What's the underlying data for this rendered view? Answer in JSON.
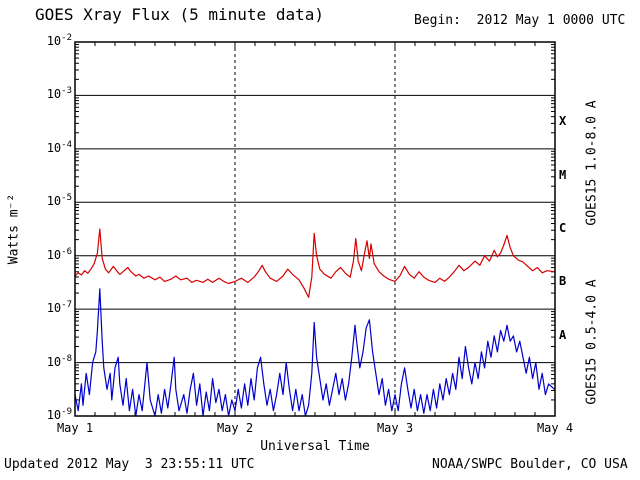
{
  "header": {
    "title": "GOES Xray Flux (5 minute data)",
    "begin_label": "Begin:  2012 May 1 0000 UTC"
  },
  "footer": {
    "updated": "Updated 2012 May  3 23:55:11 UTC",
    "credit": "NOAA/SWPC Boulder, CO USA"
  },
  "chart_data": {
    "type": "line",
    "title": "GOES Xray Flux (5 minute data)",
    "xlabel": "Universal Time",
    "ylabel": "Watts m⁻²",
    "x_range_days": [
      1,
      4
    ],
    "y_log_range": [
      -9,
      -2
    ],
    "x_ticks": [
      {
        "label": "May 1",
        "day": 1
      },
      {
        "label": "May 2",
        "day": 2
      },
      {
        "label": "May 3",
        "day": 3
      },
      {
        "label": "May 4",
        "day": 4
      }
    ],
    "y_tick_exponents": [
      -2,
      -3,
      -4,
      -5,
      -6,
      -7,
      -8,
      -9
    ],
    "flux_classes": [
      {
        "label": "X",
        "log_center": -3.5
      },
      {
        "label": "M",
        "log_center": -4.5
      },
      {
        "label": "C",
        "log_center": -5.5
      },
      {
        "label": "B",
        "log_center": -6.5
      },
      {
        "label": "A",
        "log_center": -7.5
      }
    ],
    "grid": {
      "h_line_exponents": [
        -3,
        -4,
        -5,
        -6,
        -7,
        -8
      ],
      "v_dashed_days": [
        2,
        3
      ]
    },
    "series": [
      {
        "name": "GOES15 1.0-8.0 A",
        "color": "#d40000",
        "points": [
          [
            1.0,
            -6.38
          ],
          [
            1.02,
            -6.32
          ],
          [
            1.04,
            -6.36
          ],
          [
            1.06,
            -6.28
          ],
          [
            1.08,
            -6.33
          ],
          [
            1.1,
            -6.25
          ],
          [
            1.12,
            -6.15
          ],
          [
            1.14,
            -5.95
          ],
          [
            1.155,
            -5.5
          ],
          [
            1.17,
            -6.05
          ],
          [
            1.19,
            -6.25
          ],
          [
            1.21,
            -6.32
          ],
          [
            1.24,
            -6.2
          ],
          [
            1.26,
            -6.28
          ],
          [
            1.28,
            -6.35
          ],
          [
            1.3,
            -6.3
          ],
          [
            1.33,
            -6.22
          ],
          [
            1.35,
            -6.3
          ],
          [
            1.38,
            -6.38
          ],
          [
            1.4,
            -6.35
          ],
          [
            1.43,
            -6.42
          ],
          [
            1.46,
            -6.38
          ],
          [
            1.5,
            -6.45
          ],
          [
            1.53,
            -6.4
          ],
          [
            1.56,
            -6.48
          ],
          [
            1.6,
            -6.44
          ],
          [
            1.63,
            -6.38
          ],
          [
            1.66,
            -6.45
          ],
          [
            1.7,
            -6.42
          ],
          [
            1.73,
            -6.5
          ],
          [
            1.76,
            -6.46
          ],
          [
            1.8,
            -6.5
          ],
          [
            1.83,
            -6.44
          ],
          [
            1.86,
            -6.5
          ],
          [
            1.9,
            -6.42
          ],
          [
            1.93,
            -6.48
          ],
          [
            1.96,
            -6.52
          ],
          [
            2.0,
            -6.48
          ],
          [
            2.04,
            -6.42
          ],
          [
            2.08,
            -6.5
          ],
          [
            2.12,
            -6.4
          ],
          [
            2.15,
            -6.28
          ],
          [
            2.17,
            -6.18
          ],
          [
            2.19,
            -6.3
          ],
          [
            2.22,
            -6.42
          ],
          [
            2.26,
            -6.48
          ],
          [
            2.3,
            -6.38
          ],
          [
            2.33,
            -6.25
          ],
          [
            2.36,
            -6.35
          ],
          [
            2.4,
            -6.45
          ],
          [
            2.43,
            -6.6
          ],
          [
            2.46,
            -6.78
          ],
          [
            2.48,
            -6.4
          ],
          [
            2.495,
            -5.58
          ],
          [
            2.51,
            -6.0
          ],
          [
            2.53,
            -6.25
          ],
          [
            2.56,
            -6.35
          ],
          [
            2.6,
            -6.42
          ],
          [
            2.63,
            -6.3
          ],
          [
            2.66,
            -6.22
          ],
          [
            2.69,
            -6.33
          ],
          [
            2.72,
            -6.4
          ],
          [
            2.74,
            -6.1
          ],
          [
            2.755,
            -5.68
          ],
          [
            2.77,
            -6.1
          ],
          [
            2.79,
            -6.28
          ],
          [
            2.81,
            -5.95
          ],
          [
            2.825,
            -5.72
          ],
          [
            2.84,
            -6.05
          ],
          [
            2.85,
            -5.78
          ],
          [
            2.87,
            -6.15
          ],
          [
            2.9,
            -6.3
          ],
          [
            2.93,
            -6.38
          ],
          [
            2.96,
            -6.44
          ],
          [
            3.0,
            -6.48
          ],
          [
            3.03,
            -6.38
          ],
          [
            3.06,
            -6.2
          ],
          [
            3.09,
            -6.35
          ],
          [
            3.12,
            -6.42
          ],
          [
            3.15,
            -6.3
          ],
          [
            3.18,
            -6.4
          ],
          [
            3.21,
            -6.46
          ],
          [
            3.25,
            -6.5
          ],
          [
            3.28,
            -6.42
          ],
          [
            3.31,
            -6.48
          ],
          [
            3.34,
            -6.4
          ],
          [
            3.37,
            -6.3
          ],
          [
            3.4,
            -6.18
          ],
          [
            3.43,
            -6.28
          ],
          [
            3.46,
            -6.22
          ],
          [
            3.5,
            -6.1
          ],
          [
            3.53,
            -6.18
          ],
          [
            3.56,
            -6.0
          ],
          [
            3.59,
            -6.1
          ],
          [
            3.62,
            -5.9
          ],
          [
            3.64,
            -6.02
          ],
          [
            3.66,
            -5.95
          ],
          [
            3.68,
            -5.8
          ],
          [
            3.7,
            -5.62
          ],
          [
            3.72,
            -5.85
          ],
          [
            3.74,
            -6.0
          ],
          [
            3.77,
            -6.08
          ],
          [
            3.8,
            -6.12
          ],
          [
            3.83,
            -6.2
          ],
          [
            3.86,
            -6.28
          ],
          [
            3.89,
            -6.22
          ],
          [
            3.92,
            -6.32
          ],
          [
            3.95,
            -6.28
          ],
          [
            3.997,
            -6.3
          ]
        ]
      },
      {
        "name": "GOES15 0.5-4.0 A",
        "color": "#0000cc",
        "points": [
          [
            1.0,
            -8.6
          ],
          [
            1.02,
            -8.9
          ],
          [
            1.04,
            -8.4
          ],
          [
            1.05,
            -8.8
          ],
          [
            1.07,
            -8.2
          ],
          [
            1.09,
            -8.6
          ],
          [
            1.11,
            -8.0
          ],
          [
            1.13,
            -7.8
          ],
          [
            1.14,
            -7.4
          ],
          [
            1.155,
            -6.62
          ],
          [
            1.17,
            -7.6
          ],
          [
            1.18,
            -8.1
          ],
          [
            1.2,
            -8.5
          ],
          [
            1.22,
            -8.2
          ],
          [
            1.23,
            -8.7
          ],
          [
            1.25,
            -8.1
          ],
          [
            1.27,
            -7.9
          ],
          [
            1.28,
            -8.4
          ],
          [
            1.3,
            -8.8
          ],
          [
            1.32,
            -8.3
          ],
          [
            1.34,
            -8.9
          ],
          [
            1.36,
            -8.5
          ],
          [
            1.38,
            -9.0
          ],
          [
            1.4,
            -8.6
          ],
          [
            1.42,
            -8.9
          ],
          [
            1.44,
            -8.3
          ],
          [
            1.45,
            -8.0
          ],
          [
            1.47,
            -8.7
          ],
          [
            1.5,
            -9.0
          ],
          [
            1.52,
            -8.6
          ],
          [
            1.54,
            -8.95
          ],
          [
            1.56,
            -8.5
          ],
          [
            1.58,
            -8.85
          ],
          [
            1.6,
            -8.4
          ],
          [
            1.62,
            -7.9
          ],
          [
            1.63,
            -8.5
          ],
          [
            1.65,
            -8.9
          ],
          [
            1.68,
            -8.6
          ],
          [
            1.7,
            -8.95
          ],
          [
            1.72,
            -8.5
          ],
          [
            1.74,
            -8.2
          ],
          [
            1.76,
            -8.8
          ],
          [
            1.78,
            -8.4
          ],
          [
            1.8,
            -9.0
          ],
          [
            1.82,
            -8.55
          ],
          [
            1.84,
            -8.9
          ],
          [
            1.86,
            -8.3
          ],
          [
            1.88,
            -8.75
          ],
          [
            1.9,
            -8.5
          ],
          [
            1.92,
            -8.9
          ],
          [
            1.94,
            -8.6
          ],
          [
            1.96,
            -9.0
          ],
          [
            1.98,
            -8.7
          ],
          [
            2.0,
            -8.9
          ],
          [
            2.02,
            -8.5
          ],
          [
            2.04,
            -8.85
          ],
          [
            2.06,
            -8.4
          ],
          [
            2.08,
            -8.8
          ],
          [
            2.1,
            -8.3
          ],
          [
            2.12,
            -8.7
          ],
          [
            2.14,
            -8.1
          ],
          [
            2.16,
            -7.9
          ],
          [
            2.18,
            -8.4
          ],
          [
            2.2,
            -8.8
          ],
          [
            2.22,
            -8.5
          ],
          [
            2.24,
            -8.9
          ],
          [
            2.26,
            -8.6
          ],
          [
            2.28,
            -8.2
          ],
          [
            2.3,
            -8.6
          ],
          [
            2.32,
            -8.0
          ],
          [
            2.34,
            -8.5
          ],
          [
            2.36,
            -8.9
          ],
          [
            2.38,
            -8.5
          ],
          [
            2.4,
            -8.9
          ],
          [
            2.42,
            -8.6
          ],
          [
            2.44,
            -9.0
          ],
          [
            2.46,
            -8.8
          ],
          [
            2.48,
            -8.2
          ],
          [
            2.495,
            -7.25
          ],
          [
            2.51,
            -7.9
          ],
          [
            2.53,
            -8.3
          ],
          [
            2.55,
            -8.7
          ],
          [
            2.57,
            -8.4
          ],
          [
            2.59,
            -8.8
          ],
          [
            2.61,
            -8.5
          ],
          [
            2.63,
            -8.2
          ],
          [
            2.65,
            -8.6
          ],
          [
            2.67,
            -8.3
          ],
          [
            2.69,
            -8.7
          ],
          [
            2.71,
            -8.4
          ],
          [
            2.73,
            -7.9
          ],
          [
            2.75,
            -7.3
          ],
          [
            2.76,
            -7.6
          ],
          [
            2.78,
            -8.1
          ],
          [
            2.8,
            -7.8
          ],
          [
            2.82,
            -7.35
          ],
          [
            2.84,
            -7.2
          ],
          [
            2.86,
            -7.8
          ],
          [
            2.88,
            -8.2
          ],
          [
            2.9,
            -8.6
          ],
          [
            2.92,
            -8.3
          ],
          [
            2.94,
            -8.8
          ],
          [
            2.96,
            -8.5
          ],
          [
            2.98,
            -8.9
          ],
          [
            3.0,
            -8.6
          ],
          [
            3.02,
            -8.9
          ],
          [
            3.04,
            -8.4
          ],
          [
            3.06,
            -8.1
          ],
          [
            3.08,
            -8.5
          ],
          [
            3.1,
            -8.85
          ],
          [
            3.12,
            -8.5
          ],
          [
            3.14,
            -8.9
          ],
          [
            3.16,
            -8.6
          ],
          [
            3.18,
            -8.95
          ],
          [
            3.2,
            -8.6
          ],
          [
            3.22,
            -8.9
          ],
          [
            3.24,
            -8.5
          ],
          [
            3.26,
            -8.85
          ],
          [
            3.28,
            -8.4
          ],
          [
            3.3,
            -8.7
          ],
          [
            3.32,
            -8.3
          ],
          [
            3.34,
            -8.6
          ],
          [
            3.36,
            -8.2
          ],
          [
            3.38,
            -8.5
          ],
          [
            3.4,
            -7.9
          ],
          [
            3.42,
            -8.3
          ],
          [
            3.44,
            -7.7
          ],
          [
            3.46,
            -8.1
          ],
          [
            3.48,
            -8.4
          ],
          [
            3.5,
            -8.0
          ],
          [
            3.52,
            -8.3
          ],
          [
            3.54,
            -7.8
          ],
          [
            3.56,
            -8.1
          ],
          [
            3.58,
            -7.6
          ],
          [
            3.6,
            -7.9
          ],
          [
            3.62,
            -7.5
          ],
          [
            3.64,
            -7.8
          ],
          [
            3.66,
            -7.4
          ],
          [
            3.68,
            -7.6
          ],
          [
            3.7,
            -7.3
          ],
          [
            3.72,
            -7.6
          ],
          [
            3.74,
            -7.5
          ],
          [
            3.76,
            -7.8
          ],
          [
            3.78,
            -7.6
          ],
          [
            3.8,
            -7.9
          ],
          [
            3.82,
            -8.2
          ],
          [
            3.84,
            -7.9
          ],
          [
            3.86,
            -8.3
          ],
          [
            3.88,
            -8.0
          ],
          [
            3.9,
            -8.5
          ],
          [
            3.92,
            -8.2
          ],
          [
            3.94,
            -8.6
          ],
          [
            3.96,
            -8.4
          ],
          [
            3.997,
            -8.5
          ]
        ]
      }
    ]
  }
}
